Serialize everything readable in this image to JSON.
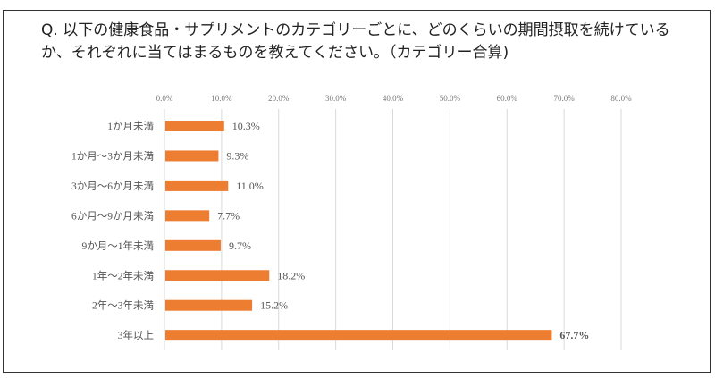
{
  "chart_data": {
    "type": "bar",
    "orientation": "horizontal",
    "title": "Q. 以下の健康食品・サプリメントのカテゴリーごとに、どのくらいの期間摂取を続けているか、それぞれに当てはまるものを教えてください。（カテゴリー合算)",
    "categories": [
      "1か月未満",
      "1か月～3か月未満",
      "3か月～6か月未満",
      "6か月～9か月未満",
      "9か月～1年未満",
      "1年～2年未満",
      "2年～3年未満",
      "3年以上"
    ],
    "values": [
      10.3,
      9.3,
      11.0,
      7.7,
      9.7,
      18.2,
      15.2,
      67.7
    ],
    "data_labels": [
      "10.3%",
      "9.3%",
      "11.0%",
      "7.7%",
      "9.7%",
      "18.2%",
      "15.2%",
      "67.7%"
    ],
    "x_ticks": [
      "0.0%",
      "10.0%",
      "20.0%",
      "30.0%",
      "40.0%",
      "50.0%",
      "60.0%",
      "70.0%",
      "80.0%"
    ],
    "xlim": [
      0,
      80
    ],
    "axis_position": "top",
    "grid": true,
    "colors": {
      "bar": "#ED7D31",
      "highlight_label": "#FF0000",
      "grid": "#D9D9D9"
    },
    "highlight_index": 7
  }
}
